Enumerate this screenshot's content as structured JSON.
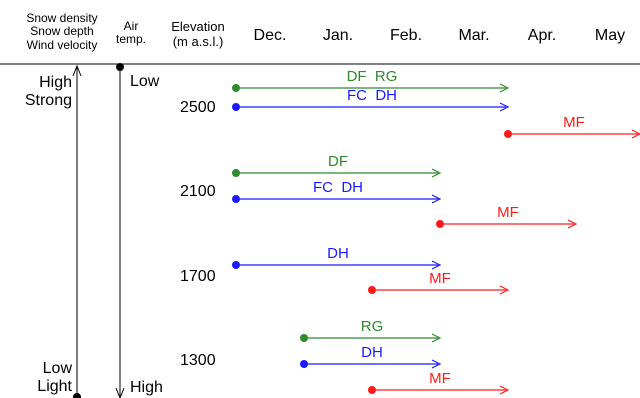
{
  "header": {
    "col1_lines": [
      "Snow density",
      "Snow depth",
      "Wind velocity"
    ],
    "col2_lines": [
      "Air",
      "temp."
    ],
    "col3_lines": [
      "Elevation",
      "(m a.s.l.)"
    ],
    "months": [
      "Dec.",
      "Jan.",
      "Feb.",
      "Mar.",
      "Apr.",
      "May"
    ]
  },
  "axis_left": {
    "top_lines": [
      "High",
      "Strong"
    ],
    "bottom_lines": [
      "Low",
      "Light"
    ]
  },
  "axis_temp": {
    "top": "Low",
    "bottom": "High"
  },
  "colors": {
    "DF": "#2e8b2e",
    "RG": "#2e8b2e",
    "FC": "#1a1aff",
    "DH": "#1a1aff",
    "MF": "#ff1a1a"
  },
  "elevations": [
    {
      "elevation": "2500",
      "bars": [
        {
          "label": "DF  RG",
          "color": "#2e8b2e",
          "start_month": 0.0,
          "end_month": 4.0
        },
        {
          "label": "FC  DH",
          "color": "#1a1aff",
          "start_month": 0.0,
          "end_month": 4.0
        },
        {
          "label": "MF",
          "color": "#ff1a1a",
          "start_month": 4.0,
          "end_month": 6.0
        }
      ]
    },
    {
      "elevation": "2100",
      "bars": [
        {
          "label": "DF",
          "color": "#2e8b2e",
          "start_month": 0.0,
          "end_month": 3.0
        },
        {
          "label": "FC  DH",
          "color": "#1a1aff",
          "start_month": 0.0,
          "end_month": 3.0
        },
        {
          "label": "MF",
          "color": "#ff1a1a",
          "start_month": 3.0,
          "end_month": 5.0
        }
      ]
    },
    {
      "elevation": "1700",
      "bars": [
        {
          "label": "DH",
          "color": "#1a1aff",
          "start_month": 0.0,
          "end_month": 3.0
        },
        {
          "label": "MF",
          "color": "#ff1a1a",
          "start_month": 2.0,
          "end_month": 4.0
        }
      ]
    },
    {
      "elevation": "1300",
      "bars": [
        {
          "label": "RG",
          "color": "#2e8b2e",
          "start_month": 1.0,
          "end_month": 3.0
        },
        {
          "label": "DH",
          "color": "#1a1aff",
          "start_month": 1.0,
          "end_month": 3.0
        },
        {
          "label": "MF",
          "color": "#ff1a1a",
          "start_month": 2.0,
          "end_month": 4.0
        }
      ]
    }
  ]
}
